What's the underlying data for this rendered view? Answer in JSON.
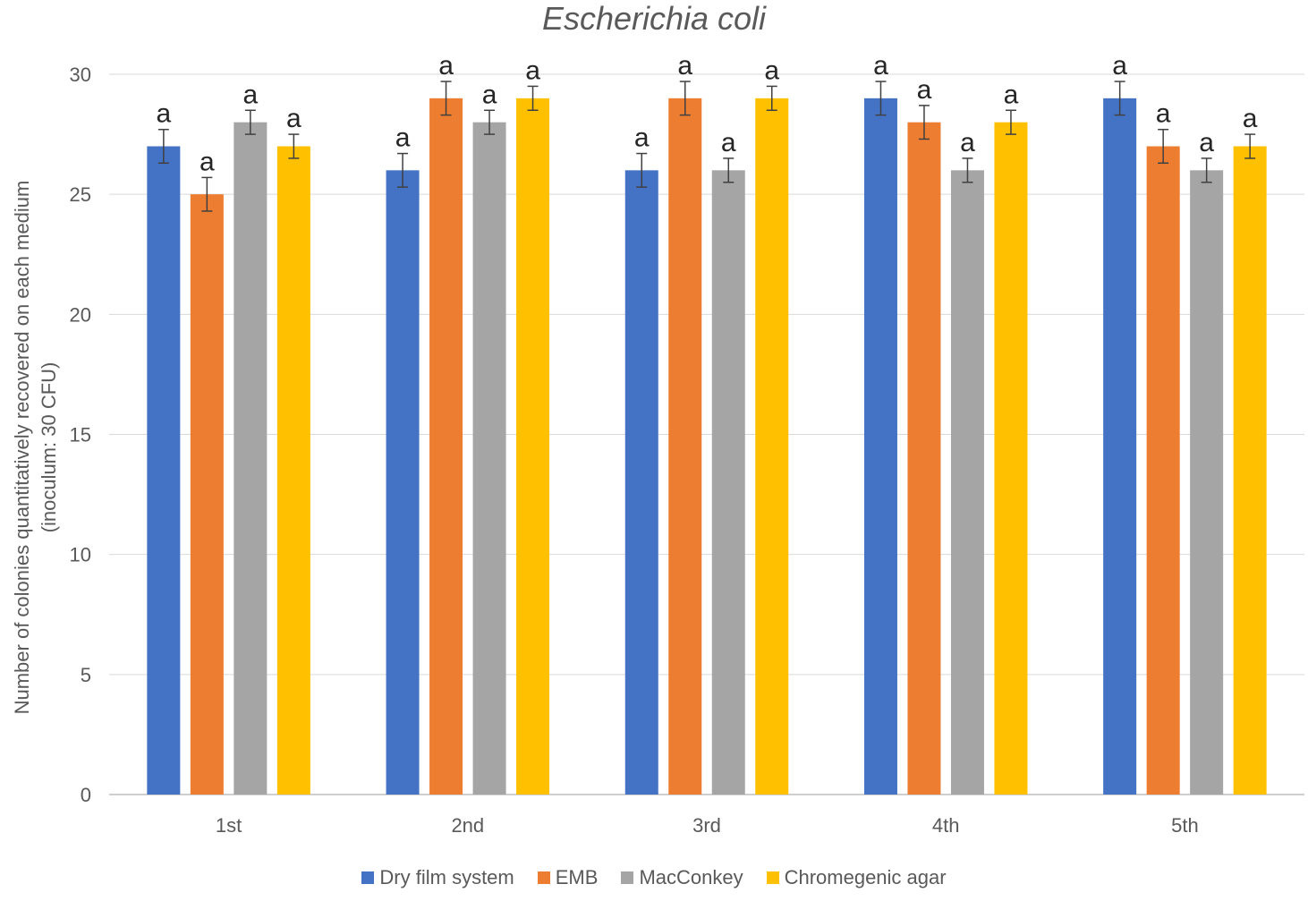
{
  "chart_data": {
    "type": "bar",
    "title": "Escherichia coli",
    "xlabel": "",
    "ylabel_line1": "Number of colonies quantitatively recovered on each medium",
    "ylabel_line2": "(inoculum: 30 CFU)",
    "ylim": [
      0,
      30
    ],
    "yticks": [
      0,
      5,
      10,
      15,
      20,
      25,
      30
    ],
    "grid": true,
    "legend_position": "bottom",
    "categories": [
      "1st",
      "2nd",
      "3rd",
      "4th",
      "5th"
    ],
    "series": [
      {
        "name": "Dry film system",
        "color": "#4472C4",
        "values": [
          27,
          26,
          26,
          29,
          29
        ],
        "errors": [
          0.7,
          0.7,
          0.7,
          0.7,
          0.7
        ],
        "labels": [
          "a",
          "a",
          "a",
          "a",
          "a"
        ]
      },
      {
        "name": "EMB",
        "color": "#ED7D31",
        "values": [
          25,
          29,
          29,
          28,
          27
        ],
        "errors": [
          0.7,
          0.7,
          0.7,
          0.7,
          0.7
        ],
        "labels": [
          "a",
          "a",
          "a",
          "a",
          "a"
        ]
      },
      {
        "name": "MacConkey",
        "color": "#A5A5A5",
        "values": [
          28,
          28,
          26,
          26,
          26
        ],
        "errors": [
          0.5,
          0.5,
          0.5,
          0.5,
          0.5
        ],
        "labels": [
          "a",
          "a",
          "a",
          "a",
          "a"
        ]
      },
      {
        "name": "Chromegenic agar",
        "color": "#FFC000",
        "values": [
          27,
          29,
          29,
          28,
          27
        ],
        "errors": [
          0.5,
          0.5,
          0.5,
          0.5,
          0.5
        ],
        "labels": [
          "a",
          "a",
          "a",
          "a",
          "a"
        ]
      }
    ]
  }
}
